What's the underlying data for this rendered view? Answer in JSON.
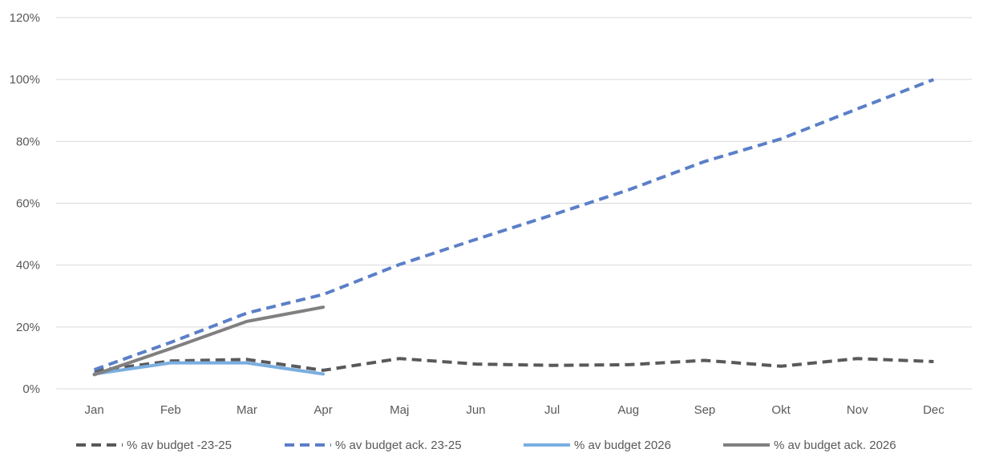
{
  "chart_data": {
    "type": "line",
    "title": "",
    "xlabel": "",
    "ylabel": "",
    "categories": [
      "Jan",
      "Feb",
      "Mar",
      "Apr",
      "Maj",
      "Jun",
      "Jul",
      "Aug",
      "Sep",
      "Okt",
      "Nov",
      "Dec"
    ],
    "ylim": [
      0,
      120
    ],
    "yticks": [
      0,
      20,
      40,
      60,
      80,
      100,
      120
    ],
    "ytick_labels": [
      "0%",
      "20%",
      "40%",
      "60%",
      "80%",
      "100%",
      "120%"
    ],
    "grid": "horizontal",
    "legend_position": "bottom",
    "series": [
      {
        "name": "% av budget -23-25",
        "color": "#595959",
        "dash": "dashed",
        "values": [
          5.8,
          9.0,
          9.5,
          6.0,
          9.8,
          8.0,
          7.6,
          7.8,
          9.2,
          7.3,
          9.8,
          8.8
        ]
      },
      {
        "name": "% av budget ack. 23-25",
        "color": "#5b7fc8",
        "dash": "dashed",
        "values": [
          6.2,
          15.0,
          24.5,
          30.5,
          40.2,
          48.3,
          56.2,
          64.3,
          73.5,
          80.8,
          90.5,
          100
        ]
      },
      {
        "name": "% av budget 2026",
        "color": "#7aaee0",
        "dash": "solid",
        "values": [
          4.8,
          8.4,
          8.4,
          4.8,
          null,
          null,
          null,
          null,
          null,
          null,
          null,
          null
        ]
      },
      {
        "name": "% av budget ack. 2026",
        "color": "#808080",
        "dash": "solid",
        "values": [
          4.6,
          13.0,
          21.8,
          26.4,
          null,
          null,
          null,
          null,
          null,
          null,
          null,
          null
        ]
      }
    ]
  }
}
